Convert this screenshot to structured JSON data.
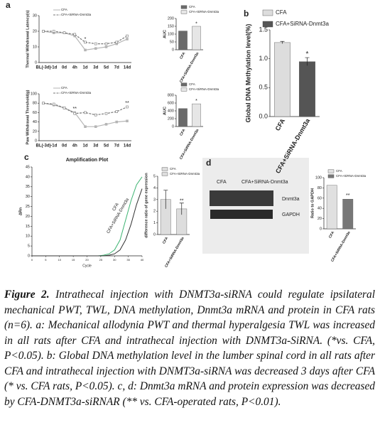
{
  "chart_data": [
    {
      "type": "line",
      "panel_label": "a",
      "ylabel": "Thermal Withdrawal Latency(s)",
      "categories": [
        "BL(-3d)",
        "-1d",
        "0d",
        "4h",
        "1d",
        "3d",
        "5d",
        "7d",
        "14d"
      ],
      "series": [
        {
          "name": "CFA",
          "color": "#b5b5b5",
          "values": [
            20,
            19,
            19,
            17,
            8,
            9,
            10,
            12,
            15
          ]
        },
        {
          "name": "CFA+SiRNA-Dnmt3a",
          "color": "#777777",
          "values": [
            20,
            20,
            19,
            18,
            13,
            12,
            12,
            13,
            17
          ]
        }
      ],
      "ylim": [
        0,
        30
      ],
      "yticks": [
        0,
        10,
        20,
        30
      ],
      "annotations": [
        "*"
      ]
    },
    {
      "type": "bar",
      "ylabel": "AUC",
      "categories": [
        "CFA",
        "CFA+SiRNA-Dnmt3a"
      ],
      "values": [
        120,
        150
      ],
      "colors": [
        "#6a6a6a",
        "#e6e6e6"
      ],
      "legend": [
        "CFA",
        "CFA+SiRNA-Dnmt3a"
      ],
      "ylim": [
        0,
        200
      ],
      "yticks": [
        0,
        50,
        100,
        150,
        200
      ],
      "annotations": [
        "*"
      ]
    },
    {
      "type": "bar",
      "panel_label": "b",
      "ylabel": "Global DNA Methylation level(%)",
      "categories": [
        "CFA",
        "CFA+SiRNA-Dnmt3a"
      ],
      "values": [
        1.28,
        0.95
      ],
      "errors": [
        0.02,
        0.07
      ],
      "colors": [
        "#dddddd",
        "#555555"
      ],
      "legend": [
        "CFA",
        "CFA+SiRNA-Dnmt3a"
      ],
      "ylim": [
        0,
        1.5
      ],
      "yticks": [
        {
          "value": 0,
          "label": "0.0"
        },
        0.5,
        {
          "value": 1,
          "label": "1.0"
        },
        1.5
      ],
      "annotations": [
        "*"
      ]
    },
    {
      "type": "line",
      "ylabel": "Paw Withdrawal Threshold(g)",
      "categories": [
        "BL(-3d)",
        "-1d",
        "0d",
        "4h",
        "1d",
        "3d",
        "5d",
        "7d",
        "14d"
      ],
      "series": [
        {
          "name": "CFA",
          "color": "#b5b5b5",
          "values": [
            80,
            76,
            70,
            60,
            30,
            30,
            35,
            40,
            42
          ]
        },
        {
          "name": "CFA+SiRNA-Dnmt3a",
          "color": "#777777",
          "values": [
            80,
            78,
            70,
            58,
            60,
            55,
            58,
            62,
            72
          ]
        }
      ],
      "ylim": [
        0,
        100
      ],
      "yticks": [
        0,
        20,
        40,
        60,
        80,
        100
      ],
      "annotations": [
        "**",
        "**"
      ]
    },
    {
      "type": "bar",
      "ylabel": "AUC",
      "categories": [
        "CFA",
        "CFA+SiRNA-Dnmt3a"
      ],
      "values": [
        460,
        580
      ],
      "colors": [
        "#6a6a6a",
        "#e6e6e6"
      ],
      "legend": [
        "CFA",
        "CFA+SiRNA-Dnmt3a"
      ],
      "ylim": [
        0,
        800
      ],
      "yticks": [
        0,
        200,
        400,
        600,
        800
      ],
      "annotations": [
        "*"
      ]
    },
    {
      "type": "line",
      "panel_label": "c",
      "title": "Amplification Plot",
      "xlabel": "Cycle",
      "ylabel": "ΔRn",
      "x": [
        0,
        4,
        8,
        12,
        16,
        20,
        24,
        26,
        28,
        30,
        32,
        34,
        36,
        38,
        40
      ],
      "series": [
        {
          "name": "CFA",
          "color": "#3cb371",
          "values": [
            0,
            0,
            0,
            0,
            0,
            0,
            0,
            0.3,
            1,
            3,
            8,
            18,
            28,
            36,
            40
          ]
        },
        {
          "name": "CFA+SiRNA-Dnmt3a",
          "color": "#333333",
          "values": [
            0,
            0,
            0,
            0,
            0,
            0,
            0,
            0,
            0.3,
            1,
            3,
            8,
            16,
            26,
            34
          ]
        }
      ],
      "xlim": [
        0,
        40
      ],
      "xticks": [
        0,
        5,
        10,
        15,
        20,
        25,
        30,
        35,
        40
      ],
      "ylim": [
        0,
        45
      ],
      "yticks": [
        0,
        5,
        10,
        15,
        20,
        25,
        30,
        35,
        40,
        45
      ]
    },
    {
      "type": "bar",
      "ylabel": "difference ratio of gene expression",
      "categories": [
        "CFA",
        "CFA+SiRNA-Dnmt3a"
      ],
      "values": [
        3.0,
        2.2
      ],
      "errors": [
        0.8,
        0.5
      ],
      "colors": [
        "#dddddd",
        "#dddddd"
      ],
      "legend": [
        "CFA",
        "CFA+SiRNA-Dnmt3a"
      ],
      "ylim": [
        0,
        5
      ],
      "yticks": [
        0,
        1,
        2,
        3,
        4,
        5
      ],
      "annotations": [
        "**"
      ]
    },
    {
      "type": "bar",
      "ylabel": "Ratio to GAPDH",
      "categories": [
        "CFA",
        "CFA+SiRNA-Dnmt3a"
      ],
      "values": [
        85,
        58
      ],
      "colors": [
        "#e0e0e0",
        "#777777"
      ],
      "legend": [
        "CFA",
        "CFA+SiRNA-Dnmt3a"
      ],
      "ylim": [
        0,
        100
      ],
      "yticks": [
        0,
        20,
        40,
        60,
        80,
        100
      ],
      "annotations": [
        "**"
      ]
    }
  ],
  "blot": {
    "panel_label": "d",
    "lanes": [
      "CFA",
      "CFA+SiRNA-Dnmt3a"
    ],
    "bands": [
      "Dnmt3a",
      "GAPDH"
    ]
  },
  "caption": {
    "label": "Figure 2.",
    "text": "Intrathecal injection with DNMT3a-siRNA could regulate ipsilateral mechanical PWT, TWL, DNA methylation, Dnmt3a mRNA and protein in CFA rats (n=6). a: Mechanical allodynia PWT and thermal hyperalgesia TWL was increased in all rats after CFA and intrathecal injection with DNMT3a-SiRNA. (*vs. CFA, P<0.05). b: Global DNA methylation level in the lumber spinal cord in all rats after CFA and intrathecal injection with DNMT3a-siRNA was decreased 3 days after CFA (* vs. CFA rats, P<0.05). c, d: Dnmt3a mRNA and protein expression was decreased by CFA-DNMT3a-siRNAR (** vs. CFA-operated rats, P<0.01)."
  }
}
